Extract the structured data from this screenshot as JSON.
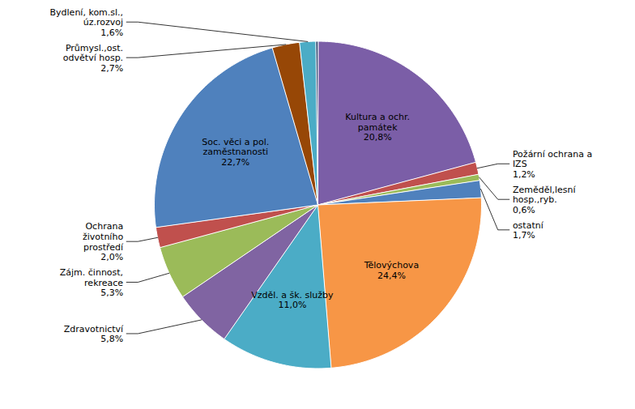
{
  "chart_data": {
    "type": "pie",
    "categories": [
      "Kultura a ochr.\npamátek\n20,8%",
      "Požární ochrana a\nIZS\n1,2%",
      "Zeměděl,lesní\nhosp.,ryb.\n0,6%",
      "ostatní\n1,7%",
      "Tělovýchova\n24,4%",
      "Vzděl. a šk. služby\n11,0%",
      "Zdravotnictví\n5,8%",
      "Zájm. činnost,\nrekreace\n5,3%",
      "Ochrana\nživotního\nprostředí\n2,0%",
      "Soc. věci a pol.\nzaměstnanosti\n22,7%",
      "Průmysl.,ost.\nodvětví hosp.\n2,7%",
      "Bydlení, kom.sl.,\núz.rozvoj\n1,6%",
      null
    ],
    "values": [
      20.8,
      1.2,
      0.6,
      1.7,
      24.4,
      11.0,
      5.8,
      5.3,
      2.0,
      22.7,
      2.7,
      1.6,
      0.2
    ],
    "colors": [
      "#7B5EA7",
      "#C0504D",
      "#9BBB59",
      "#4F81BD",
      "#F79646",
      "#4BACC6",
      "#8064A2",
      "#9BBB59",
      "#C0504D",
      "#4F81BD",
      "#974706",
      "#4BACC6",
      "#1F3864"
    ]
  }
}
